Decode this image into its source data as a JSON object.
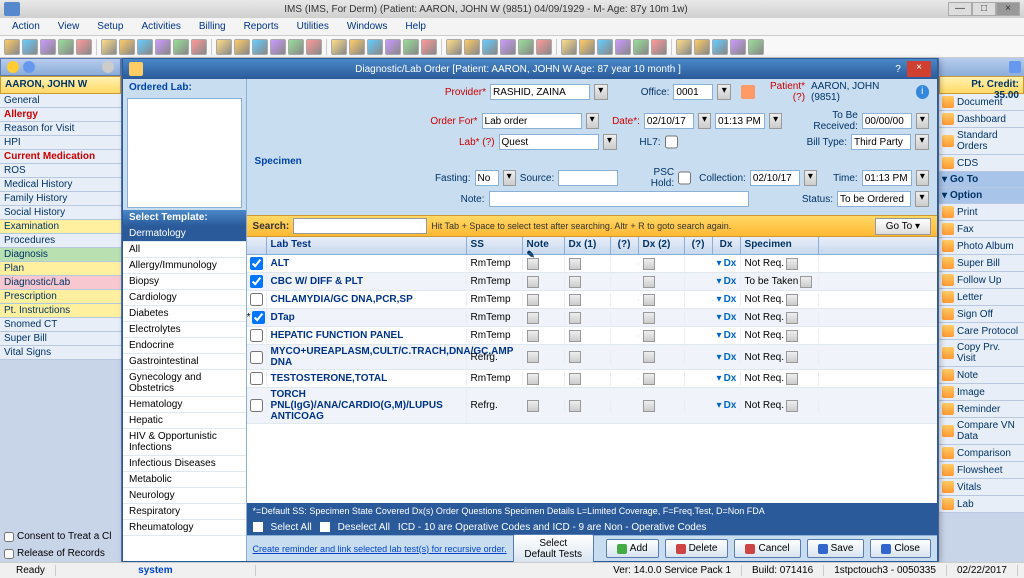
{
  "app": {
    "title": "IMS (IMS, For Derm)   (Patient: AARON, JOHN W (9851) 04/09/1929 - M- Age: 87y 10m 1w)"
  },
  "menubar": [
    "Action",
    "View",
    "Setup",
    "Activities",
    "Billing",
    "Reports",
    "Utilities",
    "Windows",
    "Help"
  ],
  "left": {
    "patient": "AARON, JOHN W",
    "items": [
      {
        "l": "General"
      },
      {
        "l": "Allergy",
        "c": "red"
      },
      {
        "l": "Reason for Visit"
      },
      {
        "l": "HPI"
      },
      {
        "l": "Current Medication",
        "c": "red"
      },
      {
        "l": "ROS"
      },
      {
        "l": "Medical History"
      },
      {
        "l": "Family History"
      },
      {
        "l": "Social History"
      },
      {
        "l": "Examination",
        "c": "yellow"
      },
      {
        "l": "Procedures"
      },
      {
        "l": "Diagnosis",
        "c": "green"
      },
      {
        "l": "Plan",
        "c": "yellow"
      },
      {
        "l": "Diagnostic/Lab",
        "c": "pink"
      },
      {
        "l": "Prescription",
        "c": "yellow"
      },
      {
        "l": "Pt. Instructions",
        "c": "yellow"
      },
      {
        "l": "Snomed CT"
      },
      {
        "l": "Super Bill"
      },
      {
        "l": "Vital Signs"
      }
    ],
    "consent1": "Consent to Treat a Cl",
    "consent2": "Release of Records"
  },
  "right": {
    "credit": "Pt. Credit: 35.00",
    "items": [
      {
        "l": "Document"
      },
      {
        "l": "Dashboard"
      },
      {
        "l": "Standard Orders"
      },
      {
        "l": "CDS"
      },
      {
        "l": "Go To",
        "blue": true
      },
      {
        "l": "Option",
        "blue": true
      },
      {
        "l": "Print"
      },
      {
        "l": "Fax"
      },
      {
        "l": "Photo Album"
      },
      {
        "l": "Super Bill"
      },
      {
        "l": "Follow Up"
      },
      {
        "l": "Letter"
      },
      {
        "l": "Sign Off"
      },
      {
        "l": "Care Protocol"
      },
      {
        "l": "Copy Prv. Visit"
      },
      {
        "l": "Note"
      },
      {
        "l": "Image"
      },
      {
        "l": "Reminder"
      },
      {
        "l": "Compare VN Data"
      },
      {
        "l": "Comparison"
      },
      {
        "l": "Flowsheet"
      },
      {
        "l": "Vitals"
      },
      {
        "l": "Lab"
      }
    ]
  },
  "dialog": {
    "title": "Diagnostic/Lab Order  [Patient: AARON, JOHN W  Age: 87 year 10 month ]",
    "ordered_lab_hdr": "Ordered Lab:",
    "select_template_hdr": "Select Template:",
    "form": {
      "provider_lbl": "Provider*",
      "provider": "RASHID, ZAINA",
      "office_lbl": "Office:",
      "office": "0001",
      "patient_lbl": "Patient*(?)",
      "patient": "AARON, JOHN  (9851)",
      "orderfor_lbl": "Order For*",
      "orderfor": "Lab order",
      "date_lbl": "Date*:",
      "date": "02/10/17",
      "time": "01:13 PM",
      "tobereceived_lbl": "To Be Received:",
      "tobereceived": "00/00/00",
      "lab_lbl": "Lab* (?)",
      "lab": "Quest",
      "hl7_lbl": "HL7:",
      "billtype_lbl": "Bill Type:",
      "billtype": "Third Party",
      "specimen_hdr": "Specimen",
      "fasting_lbl": "Fasting:",
      "fasting": "No",
      "source_lbl": "Source:",
      "psc_lbl": "PSC Hold:",
      "collection_lbl": "Collection:",
      "collection": "02/10/17",
      "colltime_lbl": "Time:",
      "colltime": "01:13 PM",
      "note_lbl": "Note:",
      "status_lbl": "Status:",
      "status": "To be Ordered"
    },
    "templates": [
      "Dermatology",
      "All",
      "Allergy/Immunology",
      "Biopsy",
      "Cardiology",
      "Diabetes",
      "Electrolytes",
      "Endocrine",
      "Gastrointestinal",
      "Gynecology and Obstetrics",
      "Hematology",
      "Hepatic",
      "HIV & Opportunistic Infections",
      "Infectious Diseases",
      "Metabolic",
      "Neurology",
      "Respiratory",
      "Rheumatology"
    ],
    "search_lbl": "Search:",
    "search_hint": "Hit Tab + Space to select test after searching. Altr + R to goto search again.",
    "goto": "Go To",
    "grid_headers": {
      "test": "Lab Test",
      "ss": "SS",
      "note": "Note",
      "dx1": "Dx (1)",
      "q": "(?)",
      "dx2": "Dx (2)",
      "q2": "(?)",
      "dx": "Dx",
      "spec": "Specimen"
    },
    "rows": [
      {
        "chk": true,
        "test": "ALT",
        "ss": "RmTemp",
        "spec": "Not Req."
      },
      {
        "chk": true,
        "test": "CBC W/ DIFF & PLT",
        "ss": "RmTemp",
        "spec": "To be Taken"
      },
      {
        "chk": false,
        "test": "CHLAMYDIA/GC DNA,PCR,SP",
        "ss": "RmTemp",
        "spec": "Not Req."
      },
      {
        "chk": true,
        "star": true,
        "test": "DTap",
        "ss": "RmTemp",
        "spec": "Not Req."
      },
      {
        "chk": false,
        "test": "HEPATIC FUNCTION PANEL",
        "ss": "RmTemp",
        "spec": "Not Req."
      },
      {
        "chk": false,
        "test": "MYCO+UREAPLASM,CULT/C.TRACH,DNA/GC,AMP DNA",
        "ss": "Refrg.",
        "spec": "Not Req."
      },
      {
        "chk": false,
        "test": "TESTOSTERONE,TOTAL",
        "ss": "RmTemp",
        "spec": "Not Req."
      },
      {
        "chk": false,
        "test": "TORCH PNL(IgG)/ANA/CARDIO(G,M)/LUPUS ANTICOAG",
        "ss": "Refrg.",
        "spec": "Not Req."
      }
    ],
    "legend1": "*=Default   SS: Specimen State    Covered Dx(s)    Order Questions    Specimen Details   L=Limited Coverage, F=Freq.Test, D=Non FDA",
    "legend2a": "Select All",
    "legend2b": "Deselect All",
    "legend2c": "ICD - 10 are Operative Codes and ICD - 9 are Non - Operative Codes",
    "footer": {
      "link": "Create reminder and link selected lab test(s) for recursive order.",
      "sdt": "Select Default Tests",
      "add": "Add",
      "del": "Delete",
      "cancel": "Cancel",
      "save": "Save",
      "close": "Close"
    }
  },
  "status": {
    "ready": "Ready",
    "sys": "system",
    "ver": "Ver: 14.0.0 Service Pack 1",
    "build": "Build: 071416",
    "conn": "1stpctouch3 - 0050335",
    "date": "02/22/2017"
  }
}
